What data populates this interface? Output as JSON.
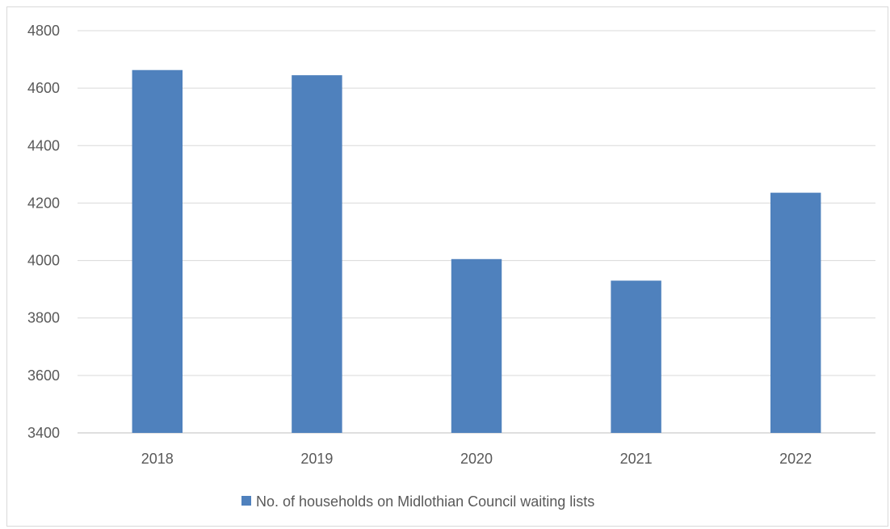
{
  "chart_data": {
    "type": "bar",
    "title": "",
    "xlabel": "",
    "ylabel": "",
    "categories": [
      "2018",
      "2019",
      "2020",
      "2021",
      "2022"
    ],
    "series": [
      {
        "name": "No. of households on Midlothian Council waiting lists",
        "values": [
          4663,
          4645,
          4005,
          3930,
          4236
        ],
        "color": "#4f81bd"
      }
    ],
    "ylim": [
      3400,
      4800
    ],
    "yticks": [
      3400,
      3600,
      3800,
      4000,
      4200,
      4400,
      4600,
      4800
    ],
    "grid": true,
    "legend": "bottom"
  },
  "colors": {
    "bar": "#4f81bd",
    "grid": "#d9d9d9",
    "axis": "#bfbfbf",
    "text": "#595959"
  }
}
